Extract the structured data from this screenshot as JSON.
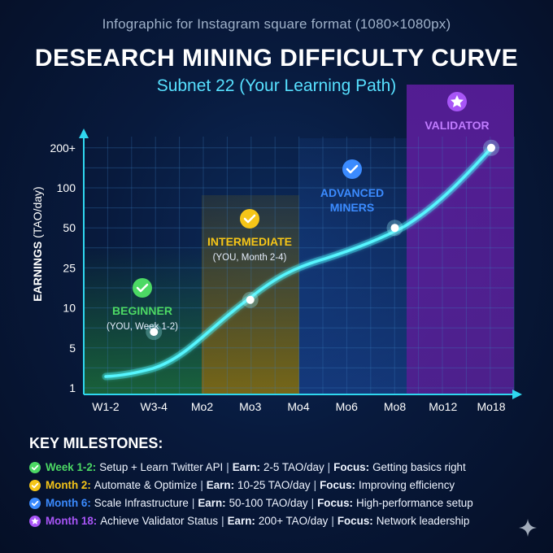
{
  "header": {
    "caption": "Infographic for Instagram square format (1080×1080px)",
    "title": "DESEARCH MINING DIFFICULTY CURVE",
    "subtitle": "Subnet 22 (Your Learning Path)"
  },
  "chart_data": {
    "type": "line",
    "ylabel_bold": "EARNINGS",
    "ylabel_unit": "(TAO/day)",
    "xlabel": "",
    "categories": [
      "W1-2",
      "W3-4",
      "Mo2",
      "Mo3",
      "Mo4",
      "Mo6",
      "Mo8",
      "Mo12",
      "Mo18"
    ],
    "y_ticks": [
      "1",
      "5",
      "10",
      "25",
      "50",
      "100",
      "200+"
    ],
    "grid": true,
    "colors": {
      "line": "#3ff0f5",
      "beginner": "#4cd964",
      "intermediate": "#f5c518",
      "advanced": "#3b8bff",
      "validator": "#a855f7"
    },
    "markers": [
      {
        "x": "W3-4",
        "y_level": 1.4
      },
      {
        "x": "Mo3",
        "y_level": 2.2
      },
      {
        "x": "Mo8",
        "y_level": 4.0
      },
      {
        "x": "Mo18",
        "y_level": 6.0
      }
    ],
    "stages": [
      {
        "key": "beginner",
        "label": "BEGINNER",
        "note": "(YOU, Week 1-2)",
        "color": "#4cd964",
        "icon": "check-icon"
      },
      {
        "key": "intermediate",
        "label": "INTERMEDIATE",
        "note": "(YOU, Month 2-4)",
        "color": "#f5c518",
        "icon": "check-icon"
      },
      {
        "key": "advanced",
        "label": "ADVANCED MINERS",
        "note": "",
        "color": "#3b8bff",
        "icon": "check-icon"
      },
      {
        "key": "validator",
        "label": "VALIDATOR",
        "note": "",
        "color": "#a855f7",
        "icon": "star-icon"
      }
    ]
  },
  "milestones": {
    "heading": "KEY MILESTONES:",
    "items": [
      {
        "when": "Week 1-2:",
        "task": "Setup + Learn Twitter API",
        "earn_label": "Earn:",
        "earn": "2-5 TAO/day",
        "focus_label": "Focus:",
        "focus": "Getting basics right",
        "color": "#4cd964",
        "icon": "check-icon"
      },
      {
        "when": "Month 2:",
        "task": "Automate & Optimize",
        "earn_label": "Earn:",
        "earn": "10-25 TAO/day",
        "focus_label": "Focus:",
        "focus": "Improving efficiency",
        "color": "#f5c518",
        "icon": "check-icon"
      },
      {
        "when": "Month 6:",
        "task": "Scale Infrastructure",
        "earn_label": "Earn:",
        "earn": "50-100 TAO/day",
        "focus_label": "Focus:",
        "focus": "High-performance setup",
        "color": "#3b8bff",
        "icon": "check-icon"
      },
      {
        "when": "Month 18:",
        "task": "Achieve Validator Status",
        "earn_label": "Earn:",
        "earn": "200+ TAO/day",
        "focus_label": "Focus:",
        "focus": "Network leadership",
        "color": "#a855f7",
        "icon": "star-icon"
      }
    ]
  }
}
